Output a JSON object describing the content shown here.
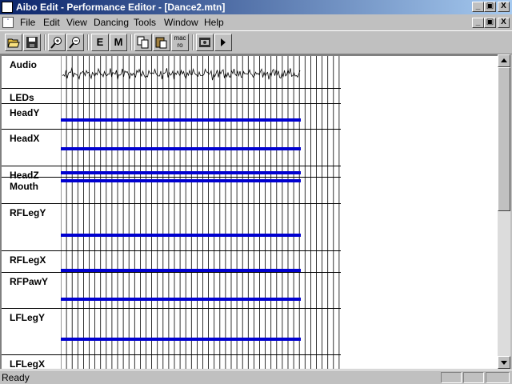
{
  "window": {
    "title": "Aibo Edit - Performance Editor - [Dance2.mtn]",
    "controls": [
      "_",
      "▣",
      "X"
    ],
    "doc_controls": [
      "_",
      "▣",
      "X"
    ]
  },
  "menu": [
    {
      "label": "File",
      "key": "F"
    },
    {
      "label": "Edit",
      "key": "E"
    },
    {
      "label": "View",
      "key": "V"
    },
    {
      "label": "Dancing",
      "key": "D"
    },
    {
      "label": "Tools",
      "key": "T"
    },
    {
      "label": "Window",
      "key": "W"
    },
    {
      "label": "Help",
      "key": "H"
    }
  ],
  "toolbar": {
    "open_icon": "folder-open-icon",
    "save_icon": "floppy-save-icon",
    "zoom_in_icon": "zoom-in-icon",
    "zoom_out_icon": "zoom-out-icon",
    "e_label": "E",
    "m_label": "M",
    "copy_icon": "copy-icon",
    "paste_icon": "paste-icon",
    "macro_label": "mac\nro",
    "aibo_icon": "aibo-robot-icon",
    "play_icon": "play-icon"
  },
  "tracks": [
    {
      "label": "Audio"
    },
    {
      "label": "LEDs"
    },
    {
      "label": "HeadY"
    },
    {
      "label": "HeadX"
    },
    {
      "label": "HeadZ"
    },
    {
      "label": "Mouth"
    },
    {
      "label": "RFLegY"
    },
    {
      "label": "RFLegX"
    },
    {
      "label": "RFPawY"
    },
    {
      "label": "LFLegY"
    },
    {
      "label": "LFLegX"
    }
  ],
  "colors": {
    "track_bar": "#0000d0"
  },
  "status": {
    "text": "Ready"
  }
}
